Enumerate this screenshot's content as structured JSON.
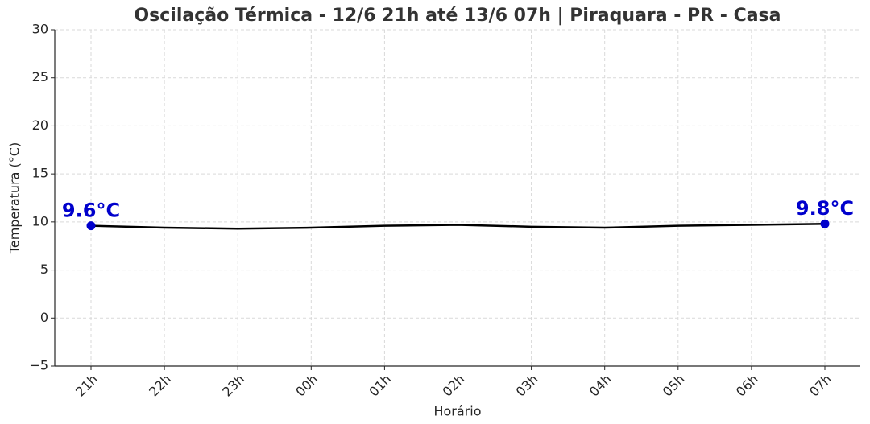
{
  "chart_data": {
    "type": "line",
    "title": "Oscilação Térmica - 12/6 21h até 13/6 07h | Piraquara - PR - Casa",
    "x_label": "Horário",
    "y_label": "Temperatura (°C)",
    "categories": [
      "21h",
      "22h",
      "23h",
      "00h",
      "01h",
      "02h",
      "03h",
      "04h",
      "05h",
      "06h",
      "07h"
    ],
    "values": [
      9.6,
      9.4,
      9.3,
      9.4,
      9.6,
      9.7,
      9.5,
      9.4,
      9.6,
      9.7,
      9.8
    ],
    "value_labels": [
      "9.6°C",
      null,
      null,
      null,
      null,
      null,
      null,
      null,
      null,
      null,
      "9.8°C"
    ],
    "color": "#000000",
    "marker_color": "#0000cc",
    "ylim": [
      -5,
      30
    ],
    "yticks": [
      {
        "value": -5,
        "label": "−5"
      },
      0,
      5,
      10,
      15,
      20,
      25,
      30
    ],
    "grid": true
  }
}
